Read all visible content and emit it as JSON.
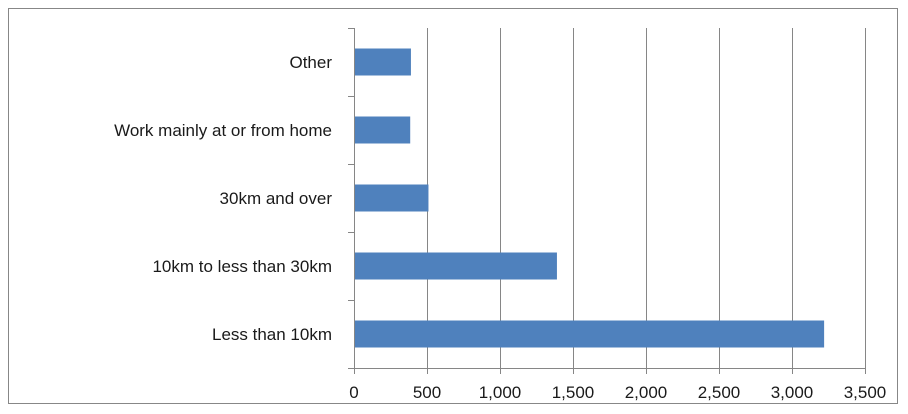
{
  "chart_data": {
    "type": "bar",
    "orientation": "horizontal",
    "categories": [
      "Other",
      "Work mainly at or from home",
      "30km and over",
      "10km to less than 30km",
      "Less than 10km"
    ],
    "values": [
      390,
      385,
      510,
      1390,
      3220
    ],
    "xlim": [
      0,
      3500
    ],
    "xticks": [
      0,
      500,
      1000,
      1500,
      2000,
      2500,
      3000,
      3500
    ],
    "xtick_labels": [
      "0",
      "500",
      "1,000",
      "1,500",
      "2,000",
      "2,500",
      "3,000",
      "3,500"
    ],
    "title": "",
    "xlabel": "",
    "ylabel": "",
    "grid": "vertical",
    "legend": "none",
    "bar_color": "#4F81BD",
    "grid_color": "#868686"
  }
}
